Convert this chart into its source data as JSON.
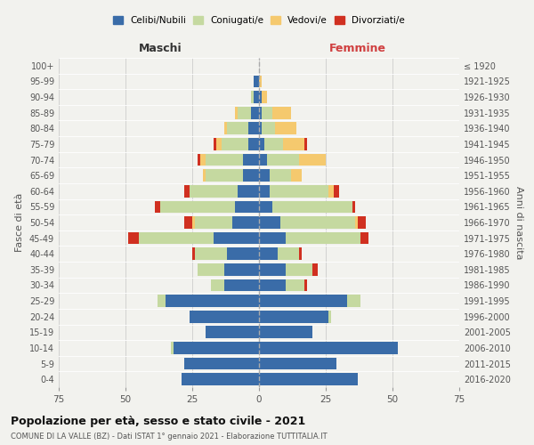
{
  "age_groups": [
    "0-4",
    "5-9",
    "10-14",
    "15-19",
    "20-24",
    "25-29",
    "30-34",
    "35-39",
    "40-44",
    "45-49",
    "50-54",
    "55-59",
    "60-64",
    "65-69",
    "70-74",
    "75-79",
    "80-84",
    "85-89",
    "90-94",
    "95-99",
    "100+"
  ],
  "birth_years": [
    "2016-2020",
    "2011-2015",
    "2006-2010",
    "2001-2005",
    "1996-2000",
    "1991-1995",
    "1986-1990",
    "1981-1985",
    "1976-1980",
    "1971-1975",
    "1966-1970",
    "1961-1965",
    "1956-1960",
    "1951-1955",
    "1946-1950",
    "1941-1945",
    "1936-1940",
    "1931-1935",
    "1926-1930",
    "1921-1925",
    "≤ 1920"
  ],
  "males": {
    "celibe": [
      29,
      28,
      32,
      20,
      26,
      35,
      13,
      13,
      12,
      17,
      10,
      9,
      8,
      6,
      6,
      4,
      4,
      3,
      2,
      2,
      0
    ],
    "coniugato": [
      0,
      0,
      1,
      0,
      0,
      3,
      5,
      10,
      12,
      28,
      14,
      28,
      18,
      14,
      14,
      10,
      8,
      5,
      1,
      0,
      0
    ],
    "vedovo": [
      0,
      0,
      0,
      0,
      0,
      0,
      0,
      0,
      0,
      0,
      1,
      0,
      0,
      1,
      2,
      2,
      1,
      1,
      0,
      0,
      0
    ],
    "divorziato": [
      0,
      0,
      0,
      0,
      0,
      0,
      0,
      0,
      1,
      4,
      3,
      2,
      2,
      0,
      1,
      1,
      0,
      0,
      0,
      0,
      0
    ]
  },
  "females": {
    "nubile": [
      37,
      29,
      52,
      20,
      26,
      33,
      10,
      10,
      7,
      10,
      8,
      5,
      4,
      4,
      3,
      2,
      1,
      1,
      1,
      0,
      0
    ],
    "coniugata": [
      0,
      0,
      0,
      0,
      1,
      5,
      7,
      10,
      8,
      28,
      28,
      30,
      22,
      8,
      12,
      7,
      5,
      4,
      0,
      0,
      0
    ],
    "vedova": [
      0,
      0,
      0,
      0,
      0,
      0,
      0,
      0,
      0,
      0,
      1,
      0,
      2,
      4,
      10,
      8,
      8,
      7,
      2,
      1,
      0
    ],
    "divorziata": [
      0,
      0,
      0,
      0,
      0,
      0,
      1,
      2,
      1,
      3,
      3,
      1,
      2,
      0,
      0,
      1,
      0,
      0,
      0,
      0,
      0
    ]
  },
  "colors": {
    "celibe_nubile": "#3a6ca8",
    "coniugato_coniugata": "#c5d9a0",
    "vedovo_vedova": "#f5c96e",
    "divorziato_divorziata": "#d03020"
  },
  "xlim": 75,
  "title": "Popolazione per età, sesso e stato civile - 2021",
  "subtitle": "COMUNE DI LA VALLE (BZ) - Dati ISTAT 1° gennaio 2021 - Elaborazione TUTTITALIA.IT",
  "ylabel_left": "Fasce di età",
  "ylabel_right": "Anni di nascita",
  "xlabel_maschi": "Maschi",
  "xlabel_femmine": "Femmine",
  "legend_labels": [
    "Celibi/Nubili",
    "Coniugati/e",
    "Vedovi/e",
    "Divorziati/e"
  ],
  "background_color": "#f2f2ee",
  "grid_color": "#cccccc"
}
